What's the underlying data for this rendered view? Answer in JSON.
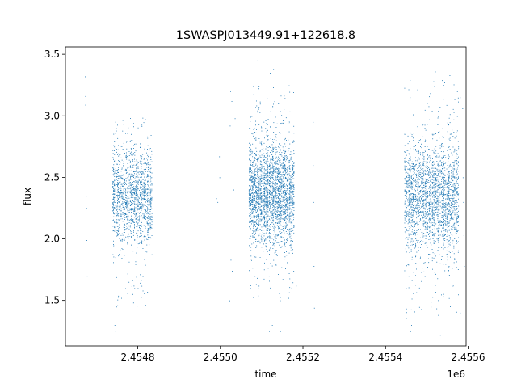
{
  "chart_data": {
    "type": "scatter",
    "title": "1SWASPJ013449.91+122618.8",
    "xlabel": "time",
    "ylabel": "flux",
    "x_offset_label": "1e6",
    "xlim": [
      2454625,
      2455595
    ],
    "ylim": [
      1.13,
      3.56
    ],
    "x_ticks": [
      2454800,
      2455000,
      2455200,
      2455400,
      2455600
    ],
    "x_tick_labels": [
      "2.4548",
      "2.4550",
      "2.4552",
      "2.4554",
      "2.4556"
    ],
    "y_ticks": [
      1.5,
      2.0,
      2.5,
      3.0,
      3.5
    ],
    "y_tick_labels": [
      "1.5",
      "2.0",
      "2.5",
      "3.0",
      "3.5"
    ],
    "grid": false,
    "marker_color": "#1f77b4",
    "series": [
      {
        "points": [
          [
            2454672,
            3.32
          ],
          [
            2454673,
            3.16
          ],
          [
            2454673,
            3.09
          ],
          [
            2454674,
            2.86
          ],
          [
            2454674,
            2.71
          ],
          [
            2454675,
            2.66
          ],
          [
            2454675,
            2.35
          ],
          [
            2454676,
            2.25
          ],
          [
            2454676,
            1.99
          ],
          [
            2454677,
            1.7
          ],
          [
            2454742,
            2.4
          ],
          [
            2454744,
            1.3
          ],
          [
            2454746,
            1.25
          ],
          [
            2454748,
            1.45
          ],
          [
            2454760,
            1.52
          ],
          [
            2454778,
            1.65
          ],
          [
            2454790,
            1.62
          ],
          [
            2454800,
            1.6
          ],
          [
            2454812,
            1.58
          ],
          [
            2454823,
            1.57
          ],
          [
            2454997,
            2.67
          ],
          [
            2454998,
            2.5
          ],
          [
            2454990,
            2.33
          ],
          [
            2454993,
            2.3
          ],
          [
            2455024,
            3.2
          ],
          [
            2455027,
            3.12
          ],
          [
            2455023,
            2.92
          ],
          [
            2455032,
            2.4
          ],
          [
            2455025,
            1.83
          ],
          [
            2455028,
            1.74
          ],
          [
            2455022,
            1.5
          ],
          [
            2455030,
            1.4
          ],
          [
            2455035,
            2.98
          ],
          [
            2455090,
            3.45
          ],
          [
            2455120,
            3.35
          ],
          [
            2455128,
            3.38
          ],
          [
            2455140,
            3.1
          ],
          [
            2455112,
            1.33
          ],
          [
            2455118,
            1.25
          ],
          [
            2455125,
            1.3
          ],
          [
            2455145,
            1.25
          ],
          [
            2455165,
            1.52
          ],
          [
            2455183,
            1.62
          ],
          [
            2455224,
            2.95
          ],
          [
            2455224,
            2.6
          ],
          [
            2455225,
            2.3
          ],
          [
            2455226,
            1.78
          ],
          [
            2455227,
            1.44
          ],
          [
            2455500,
            3.1
          ],
          [
            2455505,
            2.97
          ],
          [
            2455460,
            1.25
          ],
          [
            2455462,
            1.3
          ],
          [
            2455520,
            3.36
          ],
          [
            2455555,
            3.33
          ],
          [
            2455560,
            3.28
          ],
          [
            2455580,
            3.15
          ],
          [
            2455586,
            3.06
          ],
          [
            2455587,
            2.5
          ],
          [
            2455588,
            2.3
          ],
          [
            2455589,
            2.03
          ],
          [
            2455590,
            1.78
          ],
          [
            2455580,
            1.4
          ],
          [
            2455532,
            1.22
          ]
        ]
      }
    ],
    "clusters": [
      {
        "x_range": [
          2454738,
          2454833
        ],
        "center": 2.35,
        "spread": 0.19,
        "tail_low": 1.45,
        "tail_high": 3.0,
        "n": 1500
      },
      {
        "x_range": [
          2455068,
          2455178
        ],
        "center": 2.37,
        "spread": 0.21,
        "tail_low": 1.5,
        "tail_high": 3.25,
        "n": 2600
      },
      {
        "x_range": [
          2455445,
          2455575
        ],
        "center": 2.33,
        "spread": 0.22,
        "tail_low": 1.35,
        "tail_high": 3.3,
        "n": 2400
      }
    ]
  }
}
